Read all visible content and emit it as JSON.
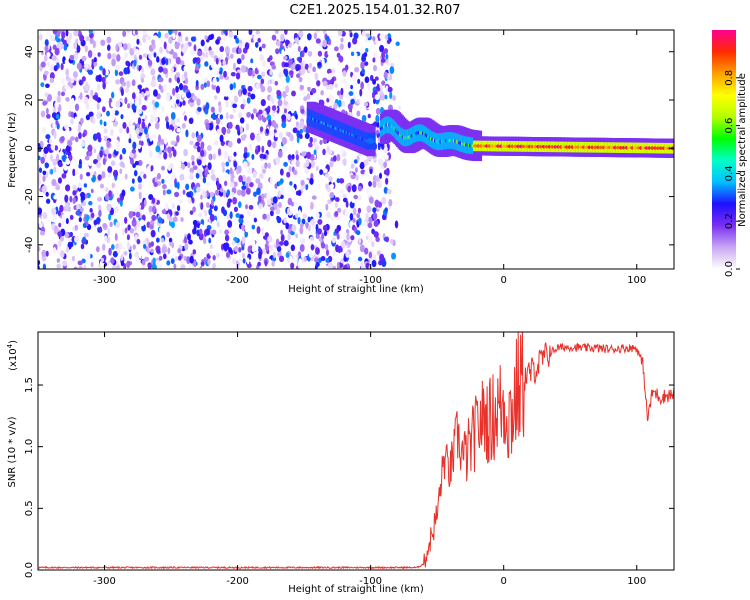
{
  "title": "C2E1.2025.154.01.32.R07",
  "chart_data": [
    {
      "type": "heatmap",
      "xlabel": "Height of straight line (km)",
      "ylabel": "Frequency (Hz)",
      "xlim": [
        -350,
        128
      ],
      "ylim": [
        -50,
        49
      ],
      "xticks": [
        -300,
        -200,
        -100,
        0,
        100
      ],
      "yticks": [
        -40,
        -20,
        0,
        20,
        40
      ],
      "colorbar": {
        "label": "Normalized spectral amplitude",
        "range": [
          0,
          1
        ],
        "ticks": [
          "0.0",
          "0.2",
          "0.4",
          "0.6",
          "0.8"
        ],
        "colors": [
          "#ffffff",
          "#c9a6f4",
          "#7a2ff2",
          "#1e10ff",
          "#00bfff",
          "#00ffc8",
          "#00ff00",
          "#b4ff00",
          "#ffff00",
          "#ffa000",
          "#ff2a00",
          "#ff0090"
        ]
      },
      "regions": [
        {
          "x": [
            -350,
            -85
          ],
          "description_value": "noise",
          "amplitude": [
            0.0,
            0.35
          ],
          "freq_range": [
            -50,
            49
          ]
        },
        {
          "x": [
            -145,
            -100
          ],
          "amplitude": [
            0.25,
            0.4
          ],
          "freq_start": 13,
          "freq_end": 3
        },
        {
          "x": [
            -90,
            -20
          ],
          "amplitude": [
            0.2,
            0.65
          ],
          "freq_start": 8,
          "freq_end": 1
        },
        {
          "x": [
            -20,
            128
          ],
          "amplitude": [
            0.5,
            1.0
          ],
          "freq_start": 1,
          "freq_end": 0
        }
      ]
    },
    {
      "type": "line",
      "xlabel": "Height of straight line (km)",
      "ylabel": "SNR (10 * v/v)",
      "y_multiplier": "(x10",
      "y_exponent": "4",
      "y_multiplier_close": ")",
      "xlim": [
        -350,
        128
      ],
      "ylim": [
        0,
        1.93
      ],
      "xticks": [
        -300,
        -200,
        -100,
        0,
        100
      ],
      "yticks": [
        "0.0",
        "0.5",
        "1.0",
        "1.5"
      ],
      "color": "#e8312a",
      "points": [
        [
          -350,
          0.02
        ],
        [
          -300,
          0.02
        ],
        [
          -250,
          0.02
        ],
        [
          -200,
          0.02
        ],
        [
          -150,
          0.02
        ],
        [
          -100,
          0.02
        ],
        [
          -65,
          0.02
        ],
        [
          -60,
          0.05
        ],
        [
          -55,
          0.25
        ],
        [
          -50,
          0.45
        ],
        [
          -45,
          0.9
        ],
        [
          -40,
          0.8
        ],
        [
          -35,
          1.1
        ],
        [
          -30,
          0.9
        ],
        [
          -25,
          1.0
        ],
        [
          -20,
          1.15
        ],
        [
          -15,
          1.25
        ],
        [
          -10,
          1.2
        ],
        [
          -5,
          1.3
        ],
        [
          0,
          1.35
        ],
        [
          5,
          1.25
        ],
        [
          10,
          1.45
        ],
        [
          15,
          1.55
        ],
        [
          20,
          1.6
        ],
        [
          25,
          1.65
        ],
        [
          30,
          1.72
        ],
        [
          35,
          1.76
        ],
        [
          40,
          1.8
        ],
        [
          50,
          1.81
        ],
        [
          60,
          1.8
        ],
        [
          70,
          1.8
        ],
        [
          80,
          1.79
        ],
        [
          90,
          1.8
        ],
        [
          100,
          1.8
        ],
        [
          105,
          1.65
        ],
        [
          108,
          1.22
        ],
        [
          112,
          1.45
        ],
        [
          118,
          1.4
        ],
        [
          124,
          1.42
        ],
        [
          128,
          1.42
        ]
      ]
    }
  ]
}
